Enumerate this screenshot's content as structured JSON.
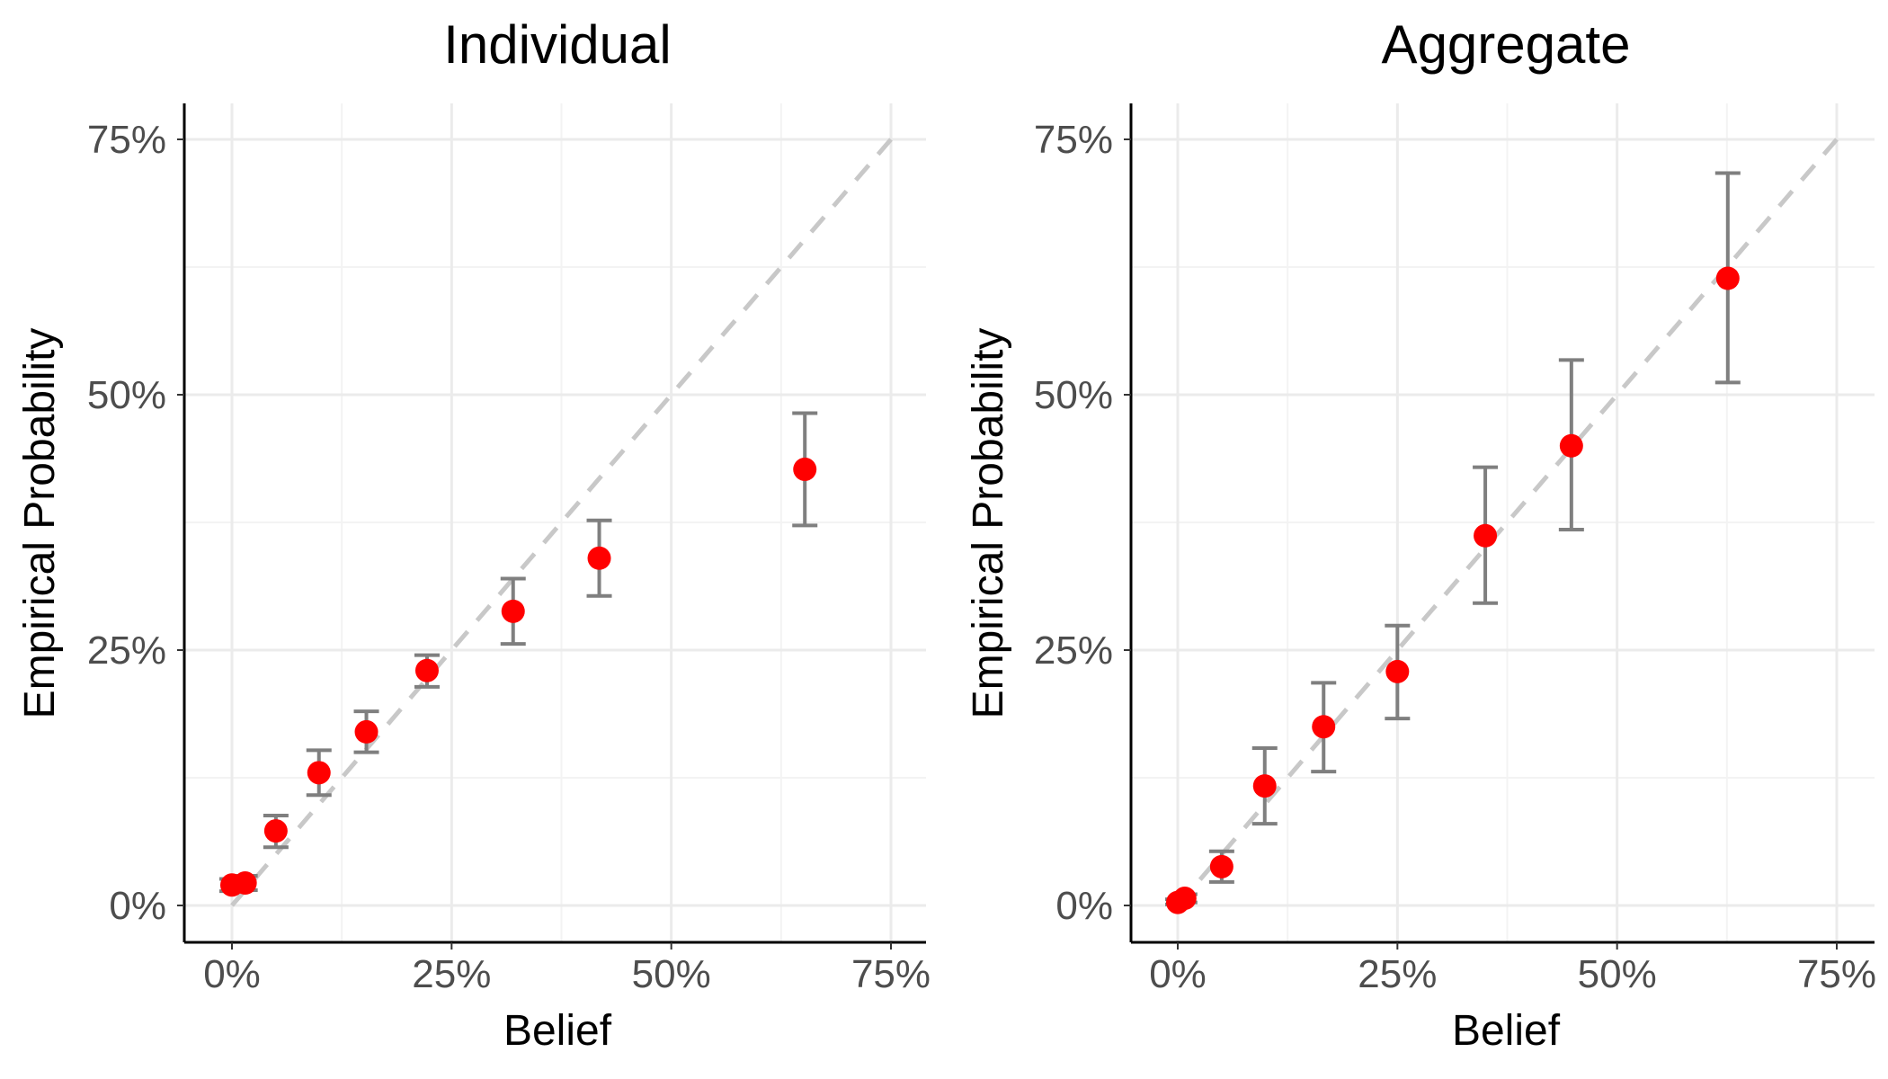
{
  "colors": {
    "point": "#ff0000",
    "errorbar": "#7f7f7f",
    "reference_line": "#c8c8c8",
    "grid": "#ebebeb"
  },
  "chart_data": [
    {
      "type": "scatter",
      "title": "Individual",
      "xlabel": "Belief",
      "ylabel": "Empirical Probability",
      "xlim": [
        0,
        0.75
      ],
      "ylim": [
        0,
        0.75
      ],
      "xticks": [
        0,
        0.25,
        0.5,
        0.75
      ],
      "yticks": [
        0,
        0.25,
        0.5,
        0.75
      ],
      "xtick_labels": [
        "0%",
        "25%",
        "50%",
        "75%"
      ],
      "ytick_labels": [
        "0%",
        "25%",
        "50%",
        "75%"
      ],
      "grid": true,
      "reference_line": "y = x (dashed)",
      "points": [
        {
          "x": 0.0,
          "y": 0.02,
          "lo": 0.014,
          "hi": 0.026
        },
        {
          "x": 0.015,
          "y": 0.022,
          "lo": 0.015,
          "hi": 0.029
        },
        {
          "x": 0.05,
          "y": 0.073,
          "lo": 0.057,
          "hi": 0.088
        },
        {
          "x": 0.099,
          "y": 0.13,
          "lo": 0.108,
          "hi": 0.152
        },
        {
          "x": 0.153,
          "y": 0.17,
          "lo": 0.15,
          "hi": 0.19
        },
        {
          "x": 0.222,
          "y": 0.23,
          "lo": 0.214,
          "hi": 0.245
        },
        {
          "x": 0.32,
          "y": 0.288,
          "lo": 0.256,
          "hi": 0.32
        },
        {
          "x": 0.418,
          "y": 0.34,
          "lo": 0.303,
          "hi": 0.377
        },
        {
          "x": 0.652,
          "y": 0.427,
          "lo": 0.372,
          "hi": 0.482
        }
      ]
    },
    {
      "type": "scatter",
      "title": "Aggregate",
      "xlabel": "Belief",
      "ylabel": "Empirical Probability",
      "xlim": [
        0,
        0.75
      ],
      "ylim": [
        0,
        0.75
      ],
      "xticks": [
        0,
        0.25,
        0.5,
        0.75
      ],
      "yticks": [
        0,
        0.25,
        0.5,
        0.75
      ],
      "xtick_labels": [
        "0%",
        "25%",
        "50%",
        "75%"
      ],
      "ytick_labels": [
        "0%",
        "25%",
        "50%",
        "75%"
      ],
      "grid": true,
      "reference_line": "y = x (dashed)",
      "points": [
        {
          "x": 0.0,
          "y": 0.003,
          "lo": 0.001,
          "hi": 0.006
        },
        {
          "x": 0.008,
          "y": 0.007,
          "lo": 0.003,
          "hi": 0.011
        },
        {
          "x": 0.05,
          "y": 0.038,
          "lo": 0.023,
          "hi": 0.053
        },
        {
          "x": 0.099,
          "y": 0.117,
          "lo": 0.08,
          "hi": 0.154
        },
        {
          "x": 0.166,
          "y": 0.175,
          "lo": 0.131,
          "hi": 0.218
        },
        {
          "x": 0.25,
          "y": 0.229,
          "lo": 0.183,
          "hi": 0.274
        },
        {
          "x": 0.35,
          "y": 0.362,
          "lo": 0.296,
          "hi": 0.429
        },
        {
          "x": 0.448,
          "y": 0.45,
          "lo": 0.368,
          "hi": 0.534
        },
        {
          "x": 0.626,
          "y": 0.614,
          "lo": 0.512,
          "hi": 0.717
        }
      ]
    }
  ]
}
